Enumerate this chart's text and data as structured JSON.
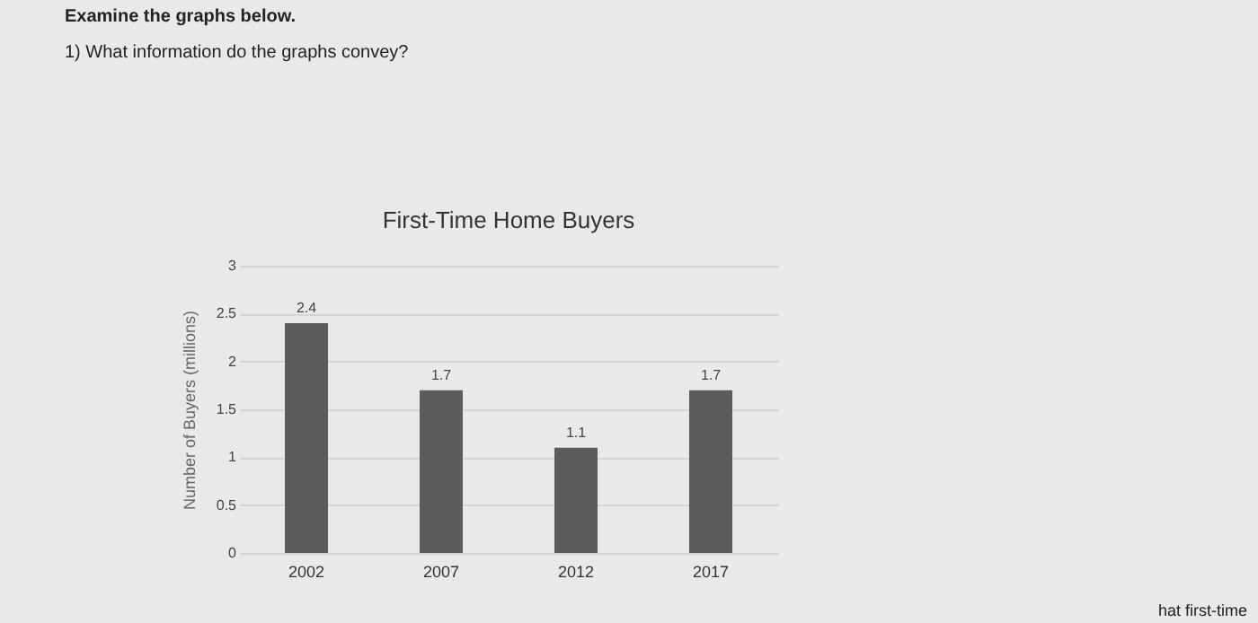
{
  "chart_data": {
    "type": "bar",
    "title": "First-Time Home Buyers",
    "ylabel": "Number of Buyers (millions)",
    "annotations": [
      "Examine the graphs below.",
      "1)  What information do the graphs convey?",
      "hat first-time"
    ],
    "categories": [
      "2002",
      "2007",
      "2012",
      "2017"
    ],
    "values": [
      2.4,
      1.7,
      1.1,
      1.7
    ],
    "color": "#5c5c5c",
    "ylim": [
      0,
      3
    ],
    "yticks": [
      0,
      0.5,
      1,
      1.5,
      2,
      2.5,
      3
    ],
    "grid": "y",
    "data_labels": true
  }
}
